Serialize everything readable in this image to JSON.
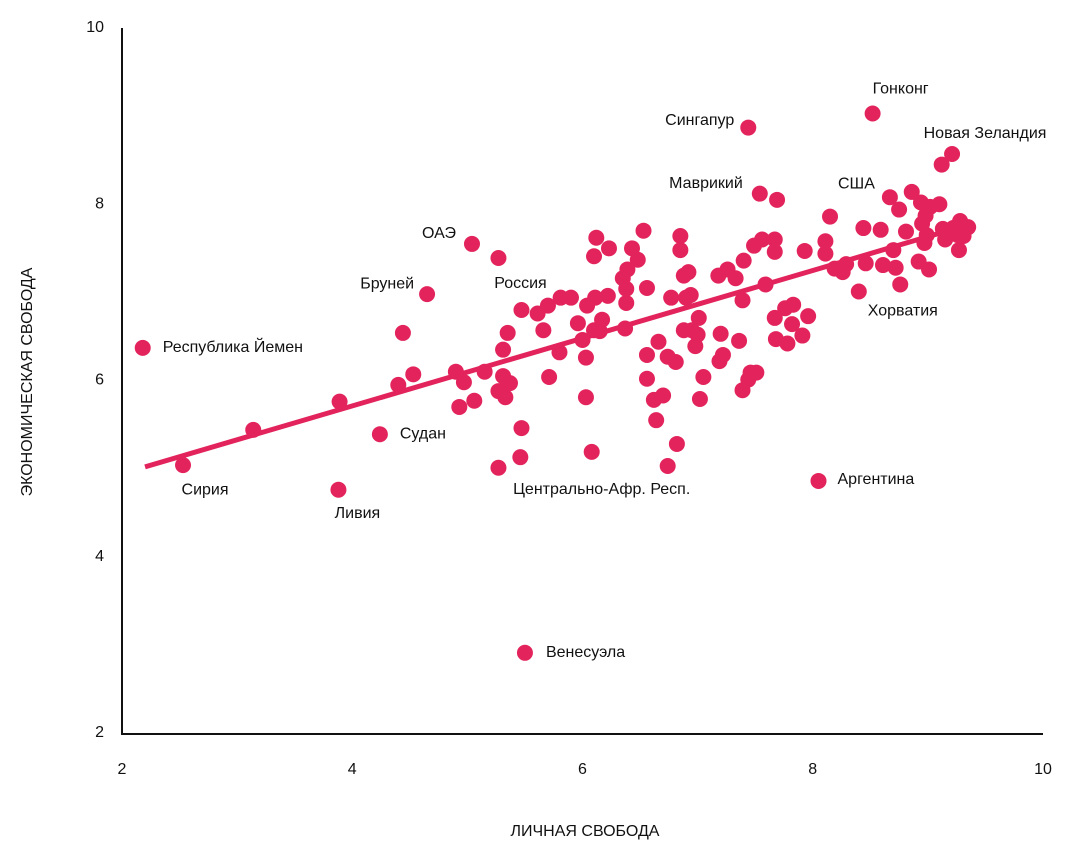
{
  "chart_data": {
    "type": "scatter",
    "x_label": "ЛИЧНАЯ СВОБОДА",
    "y_label": "ЭКОНОМИЧЕСКАЯ СВОБОДА",
    "xlim": [
      2,
      10
    ],
    "xticks": [
      2,
      4,
      6,
      8,
      10
    ],
    "ylim": [
      2,
      10
    ],
    "yticks": [
      2,
      4,
      6,
      8,
      10
    ],
    "color": "#e3245c",
    "x": [
      8.52,
      7.44,
      9.21,
      7.54,
      8.67,
      5.04,
      4.65,
      5.27,
      2.18,
      4.24,
      2.53,
      3.88,
      6.74,
      8.05,
      5.5,
      8.4,
      3.14,
      3.89,
      4.44,
      4.4,
      4.53,
      4.93,
      4.97,
      5.06,
      4.9,
      5.15,
      5.27,
      5.31,
      5.33,
      5.37,
      5.31,
      5.35,
      5.27,
      5.46,
      5.47,
      5.47,
      5.61,
      5.7,
      5.66,
      5.8,
      5.81,
      5.9,
      5.71,
      5.96,
      6.0,
      6.04,
      6.03,
      6.03,
      6.1,
      6.15,
      6.08,
      6.12,
      6.1,
      6.11,
      6.17,
      6.22,
      6.23,
      6.35,
      6.39,
      6.38,
      6.38,
      6.37,
      6.43,
      6.48,
      6.53,
      6.56,
      6.56,
      6.56,
      6.62,
      6.66,
      6.64,
      6.7,
      6.74,
      6.77,
      6.81,
      6.82,
      6.85,
      6.85,
      6.88,
      6.92,
      6.9,
      6.88,
      6.94,
      6.95,
      6.98,
      7.0,
      7.01,
      7.02,
      7.05,
      7.18,
      7.19,
      7.2,
      7.22,
      7.26,
      7.33,
      7.36,
      7.39,
      7.4,
      7.39,
      7.44,
      7.46,
      7.51,
      7.49,
      7.56,
      7.59,
      7.67,
      7.67,
      7.69,
      7.67,
      7.68,
      7.76,
      7.78,
      7.82,
      7.83,
      7.91,
      7.93,
      7.96,
      8.11,
      8.11,
      8.15,
      8.19,
      8.26,
      8.29,
      8.46,
      8.44,
      8.59,
      8.61,
      8.7,
      8.72,
      8.75,
      8.76,
      8.81,
      8.86,
      8.92,
      8.94,
      8.95,
      8.98,
      8.97,
      8.99,
      9.01,
      9.02,
      9.1,
      9.12,
      9.13,
      9.15,
      9.26,
      9.28,
      9.27,
      9.31,
      9.35,
      9.22
    ],
    "values": [
      9.03,
      8.87,
      8.57,
      8.12,
      8.08,
      7.55,
      6.98,
      7.39,
      6.37,
      5.39,
      5.04,
      4.76,
      5.03,
      4.86,
      2.91,
      7.01,
      5.44,
      5.76,
      6.54,
      5.95,
      6.07,
      5.7,
      5.98,
      5.77,
      6.1,
      6.1,
      5.88,
      6.05,
      5.81,
      5.97,
      6.35,
      6.54,
      5.01,
      5.13,
      5.46,
      6.8,
      6.76,
      6.85,
      6.57,
      6.32,
      6.94,
      6.94,
      6.04,
      6.65,
      6.46,
      6.85,
      6.26,
      5.81,
      6.57,
      6.56,
      5.19,
      7.62,
      7.41,
      6.94,
      6.69,
      6.96,
      7.5,
      7.16,
      7.26,
      7.04,
      6.88,
      6.59,
      7.5,
      7.37,
      7.7,
      7.05,
      6.29,
      6.02,
      5.78,
      6.44,
      5.55,
      5.83,
      6.27,
      6.94,
      6.21,
      5.28,
      7.64,
      7.48,
      7.19,
      7.23,
      6.94,
      6.57,
      6.97,
      6.57,
      6.39,
      6.52,
      6.71,
      5.79,
      6.04,
      7.19,
      6.22,
      6.53,
      6.29,
      7.26,
      7.16,
      6.45,
      6.91,
      7.36,
      5.89,
      6.01,
      6.09,
      6.09,
      7.53,
      7.6,
      7.09,
      7.46,
      7.6,
      8.05,
      6.71,
      6.47,
      6.82,
      6.42,
      6.64,
      6.86,
      6.51,
      7.47,
      6.73,
      7.58,
      7.44,
      7.86,
      7.27,
      7.23,
      7.32,
      7.33,
      7.73,
      7.71,
      7.31,
      7.48,
      7.28,
      7.94,
      7.09,
      7.69,
      8.14,
      7.35,
      8.02,
      7.78,
      7.87,
      7.56,
      7.65,
      7.26,
      7.97,
      8.0,
      8.45,
      7.72,
      7.6,
      7.65,
      7.81,
      7.48,
      7.64,
      7.74,
      7.73
    ],
    "labels": [
      "Гонконг",
      "Сингапур",
      "Новая Зеландия",
      "Маврикий",
      "США",
      "ОАЭ",
      "Бруней",
      "Россия",
      "Республика Йемен",
      "Судан",
      "Сирия",
      "Ливия",
      "Центрально-Афр. Респ.",
      "Аргентина",
      "Венесуэла",
      "Хорватия",
      null,
      null,
      null,
      null,
      null,
      null,
      null,
      null,
      null,
      null,
      null,
      null,
      null,
      null,
      null,
      null,
      null,
      null,
      null,
      null,
      null,
      null,
      null,
      null,
      null,
      null,
      null,
      null,
      null,
      null,
      null,
      null,
      null,
      null,
      null,
      null,
      null,
      null,
      null,
      null,
      null,
      null,
      null,
      null,
      null,
      null,
      null,
      null,
      null,
      null,
      null,
      null,
      null,
      null,
      null,
      null,
      null,
      null,
      null,
      null,
      null,
      null,
      null,
      null,
      null,
      null,
      null,
      null,
      null,
      null,
      null,
      null,
      null,
      null,
      null,
      null,
      null,
      null,
      null,
      null,
      null,
      null,
      null,
      null,
      null,
      null,
      null,
      null,
      null,
      null,
      null,
      null,
      null,
      null,
      null,
      null,
      null,
      null,
      null,
      null,
      null,
      null,
      null,
      null,
      null,
      null,
      null,
      null,
      null,
      null,
      null,
      null,
      null,
      null,
      null,
      null,
      null,
      null,
      null,
      null,
      null,
      null,
      null,
      null,
      null,
      null,
      null,
      null,
      null,
      null,
      null,
      null,
      null,
      null
    ],
    "trend": {
      "x": [
        2.2,
        9.15
      ],
      "values": [
        5.02,
        7.69
      ]
    }
  }
}
